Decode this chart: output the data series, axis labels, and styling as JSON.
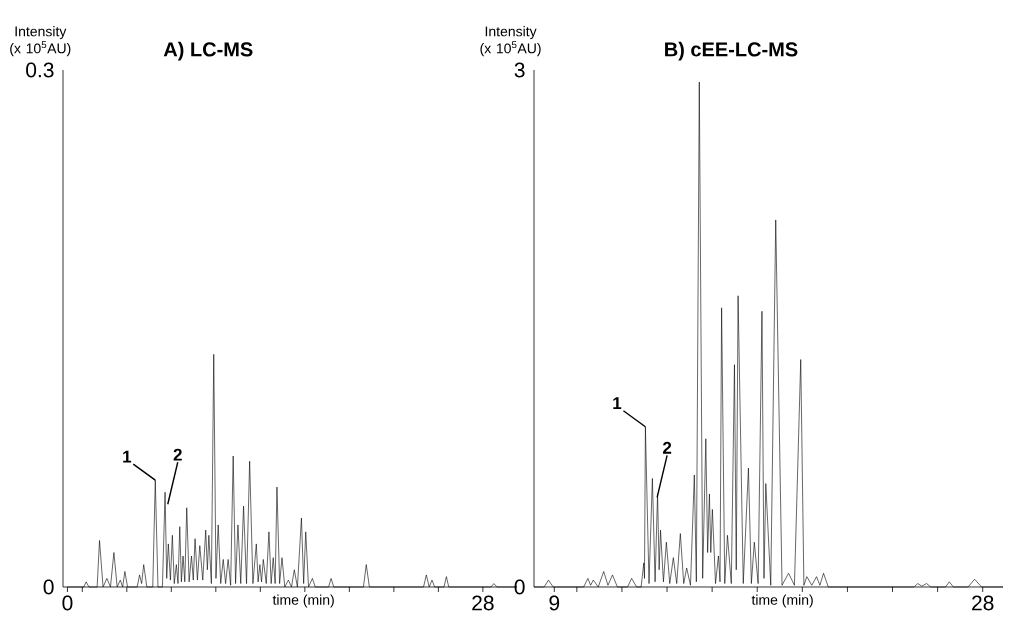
{
  "chart_data": [
    {
      "type": "line",
      "title": "A) LC-MS",
      "xlabel": "time (min)",
      "ylabel": "Intensity (x 10$^{5}$AU)",
      "color": "#000000",
      "x": [
        0,
        1.1,
        1.26,
        1.45,
        2.0,
        2.16,
        2.4,
        2.66,
        2.9,
        3.13,
        3.35,
        3.56,
        3.72,
        3.87,
        4.05,
        4.7,
        4.86,
        5.0,
        5.14,
        5.35,
        5.75,
        5.92,
        6.1,
        6.4,
        6.58,
        6.69,
        6.8,
        6.94,
        7.07,
        7.2,
        7.34,
        7.45,
        7.57,
        7.68,
        7.79,
        7.91,
        8.04,
        8.2,
        8.36,
        8.48,
        8.6,
        8.76,
        8.92,
        9.12,
        9.32,
        9.43,
        9.53,
        9.7,
        9.86,
        10.01,
        10.16,
        10.33,
        10.5,
        10.66,
        10.83,
        11.0,
        11.17,
        11.33,
        11.49,
        11.68,
        11.87,
        12.07,
        12.28,
        12.5,
        12.73,
        12.85,
        12.97,
        13.08,
        13.2,
        13.4,
        13.58,
        13.73,
        13.87,
        14.0,
        14.12,
        14.3,
        14.46,
        14.65,
        14.89,
        15.1,
        15.29,
        15.5,
        15.77,
        15.92,
        16.06,
        16.25,
        16.51,
        16.7,
        17.6,
        17.77,
        17.95,
        19.95,
        20.14,
        20.35,
        24.0,
        24.19,
        24.38,
        24.57,
        24.75,
        25.38,
        25.54,
        25.7,
        28.55,
        28.74,
        28.95,
        30.3
      ],
      "values": [
        0,
        0,
        0.003,
        0,
        0,
        0.027,
        0,
        0.005,
        0,
        0.02,
        0,
        0.004,
        0,
        0.009,
        0,
        0,
        0.007,
        0.002,
        0.013,
        0,
        0,
        0.062,
        0,
        0,
        0.055,
        0.005,
        0.025,
        0.004,
        0.03,
        0.002,
        0.013,
        0.002,
        0.035,
        0.003,
        0.018,
        0.003,
        0.046,
        0.003,
        0.018,
        0.004,
        0.028,
        0.004,
        0.024,
        0.004,
        0.033,
        0.01,
        0.03,
        0.002,
        0.135,
        0.005,
        0.036,
        0.002,
        0.016,
        0.002,
        0.016,
        0.001,
        0.076,
        0.002,
        0.036,
        0.002,
        0.047,
        0.002,
        0.073,
        0.002,
        0.025,
        0.003,
        0.013,
        0.003,
        0.016,
        0.002,
        0.032,
        0.002,
        0.017,
        0.002,
        0.058,
        0.002,
        0.017,
        0,
        0.004,
        0,
        0.01,
        0,
        0.04,
        0.002,
        0.032,
        0,
        0.005,
        0,
        0,
        0.005,
        0,
        0,
        0.013,
        0,
        0,
        0.007,
        0,
        0.004,
        0,
        0,
        0.006,
        0,
        0,
        0.002,
        0,
        0
      ],
      "xlim": [
        -0.3,
        30.3
      ],
      "ylim": [
        0,
        0.3
      ],
      "xticks": [
        {
          "value": 0,
          "label": "0"
        },
        {
          "value": 1,
          "label": null
        },
        {
          "value": 4,
          "label": null
        },
        {
          "value": 7,
          "label": null
        },
        {
          "value": 10,
          "label": null
        },
        {
          "value": 13,
          "label": null
        },
        {
          "value": 16,
          "label": null
        },
        {
          "value": 19,
          "label": null
        },
        {
          "value": 22,
          "label": null
        },
        {
          "value": 25,
          "label": null
        },
        {
          "value": 28,
          "label": "28"
        }
      ],
      "yticks": [
        0,
        0.3
      ],
      "annotations": [
        {
          "text": "1",
          "x": 5.92,
          "y": 0.062
        },
        {
          "text": "2",
          "x": 6.76,
          "y": 0.048
        }
      ]
    },
    {
      "type": "line",
      "title": "B) cEE-LC-MS",
      "xlabel": "time (min)",
      "ylabel": "Intensity (x 10$^{5}$AU)",
      "color": "#000000",
      "x": [
        8.1,
        8.55,
        8.74,
        8.95,
        10.3,
        10.49,
        10.61,
        10.73,
        10.95,
        11.19,
        11.38,
        11.58,
        11.8,
        12.25,
        12.43,
        12.65,
        12.85,
        12.97,
        13.0,
        13.04,
        13.2,
        13.35,
        13.47,
        13.58,
        13.65,
        13.71,
        13.84,
        13.97,
        14.12,
        14.28,
        14.43,
        14.59,
        14.74,
        14.87,
        15.04,
        15.21,
        15.3,
        15.43,
        15.58,
        15.72,
        15.8,
        15.88,
        15.94,
        16.01,
        16.15,
        16.28,
        16.35,
        16.42,
        16.56,
        16.68,
        16.85,
        16.99,
        17.07,
        17.15,
        17.38,
        17.61,
        17.74,
        17.87,
        18.04,
        18.21,
        18.3,
        18.38,
        18.6,
        18.82,
        19.1,
        19.39,
        19.65,
        19.93,
        20.07,
        20.2,
        20.42,
        20.63,
        20.78,
        20.94,
        21.15,
        24.95,
        25.12,
        25.3,
        25.51,
        25.7,
        26.35,
        26.52,
        26.7,
        27.35,
        27.64,
        27.95,
        28.9
      ],
      "values": [
        0,
        0,
        0.04,
        0,
        0,
        0.05,
        0.01,
        0.04,
        0,
        0.09,
        0.01,
        0.07,
        0,
        0,
        0.05,
        0,
        0,
        0.14,
        0.05,
        0.93,
        0.02,
        0.63,
        0.03,
        0.54,
        0.1,
        0.33,
        0.03,
        0.26,
        0.02,
        0.17,
        0.02,
        0.31,
        0.02,
        0.11,
        0.01,
        0.65,
        0.03,
        2.93,
        0.05,
        0.86,
        0.2,
        0.54,
        0.2,
        0.45,
        0.02,
        0.18,
        0.03,
        1.62,
        0.02,
        0.3,
        0.02,
        1.29,
        0.1,
        1.69,
        0.02,
        0.69,
        0.02,
        0.26,
        0.02,
        1.6,
        0.05,
        0.6,
        0.01,
        2.13,
        0.01,
        0.08,
        0.01,
        1.32,
        0.01,
        0.06,
        0.01,
        0.06,
        0.01,
        0.08,
        0,
        0,
        0.02,
        0.005,
        0.02,
        0,
        0,
        0.03,
        0,
        0,
        0.045,
        0,
        0
      ],
      "xlim": [
        8.1,
        28.9
      ],
      "ylim": [
        0,
        3
      ],
      "xticks": [
        {
          "value": 9,
          "label": "9"
        },
        {
          "value": 10,
          "label": null
        },
        {
          "value": 12,
          "label": null
        },
        {
          "value": 14,
          "label": null
        },
        {
          "value": 16,
          "label": null
        },
        {
          "value": 18,
          "label": null
        },
        {
          "value": 20,
          "label": null
        },
        {
          "value": 22,
          "label": null
        },
        {
          "value": 24,
          "label": null
        },
        {
          "value": 26,
          "label": null
        },
        {
          "value": 28,
          "label": "28"
        }
      ],
      "yticks": [
        0,
        3
      ],
      "annotations": [
        {
          "text": "1",
          "x": 13.04,
          "y": 0.93
        },
        {
          "text": "2",
          "x": 13.56,
          "y": 0.52
        }
      ]
    }
  ]
}
